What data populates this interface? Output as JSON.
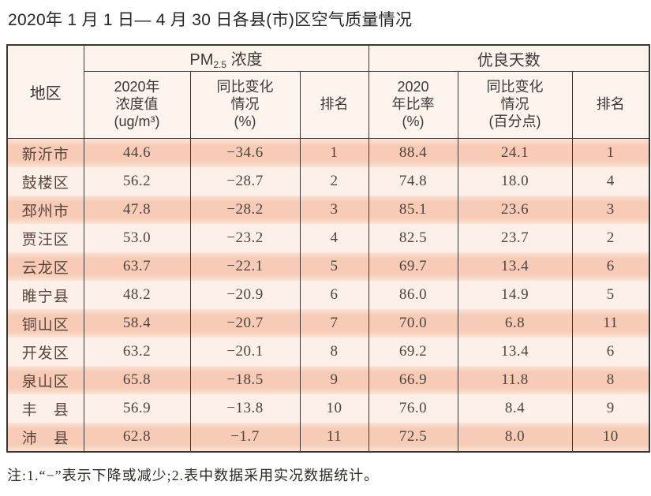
{
  "title": "2020年 1 月 1 日— 4 月 30 日各县(市)区空气质量情况",
  "table": {
    "region_header": "地区",
    "pm_group": {
      "prefix": "PM",
      "sub": "2.5",
      "suffix": " 浓度"
    },
    "good_group": "优良天数",
    "sub_headers": {
      "pm_value": "2020年\n浓度值\n(ug/m³)",
      "pm_change": "同比变化\n情况\n(%)",
      "pm_rank": "排名",
      "good_ratio": "2020\n年比率\n(%)",
      "good_change": "同比变化\n情况\n(百分点)",
      "good_rank": "排名"
    },
    "rows": [
      {
        "region": "新沂市",
        "pm_value": "44.6",
        "pm_change": "−34.6",
        "pm_rank": "1",
        "good_ratio": "88.4",
        "good_change": "24.1",
        "good_rank": "1"
      },
      {
        "region": "鼓楼区",
        "pm_value": "56.2",
        "pm_change": "−28.7",
        "pm_rank": "2",
        "good_ratio": "74.8",
        "good_change": "18.0",
        "good_rank": "4"
      },
      {
        "region": "邳州市",
        "pm_value": "47.8",
        "pm_change": "−28.2",
        "pm_rank": "3",
        "good_ratio": "85.1",
        "good_change": "23.6",
        "good_rank": "3"
      },
      {
        "region": "贾汪区",
        "pm_value": "53.0",
        "pm_change": "−23.2",
        "pm_rank": "4",
        "good_ratio": "82.5",
        "good_change": "23.7",
        "good_rank": "2"
      },
      {
        "region": "云龙区",
        "pm_value": "63.7",
        "pm_change": "−22.1",
        "pm_rank": "5",
        "good_ratio": "69.7",
        "good_change": "13.4",
        "good_rank": "6"
      },
      {
        "region": "睢宁县",
        "pm_value": "48.2",
        "pm_change": "−20.9",
        "pm_rank": "6",
        "good_ratio": "86.0",
        "good_change": "14.9",
        "good_rank": "5"
      },
      {
        "region": "铜山区",
        "pm_value": "58.4",
        "pm_change": "−20.7",
        "pm_rank": "7",
        "good_ratio": "70.0",
        "good_change": "6.8",
        "good_rank": "11"
      },
      {
        "region": "开发区",
        "pm_value": "63.2",
        "pm_change": "−20.1",
        "pm_rank": "8",
        "good_ratio": "69.2",
        "good_change": "13.4",
        "good_rank": "6"
      },
      {
        "region": "泉山区",
        "pm_value": "65.8",
        "pm_change": "−18.5",
        "pm_rank": "9",
        "good_ratio": "66.9",
        "good_change": "11.8",
        "good_rank": "8"
      },
      {
        "region": "丰　县",
        "pm_value": "56.9",
        "pm_change": "−13.8",
        "pm_rank": "10",
        "good_ratio": "76.0",
        "good_change": "8.4",
        "good_rank": "9"
      },
      {
        "region": "沛　县",
        "pm_value": "62.8",
        "pm_change": "−1.7",
        "pm_rank": "11",
        "good_ratio": "72.5",
        "good_change": "8.0",
        "good_rank": "10"
      }
    ]
  },
  "note": "注:1.“−”表示下降或减少;2.表中数据采用实况数据统计。",
  "colors": {
    "header_bg": "#fcf3ec",
    "row_stripe_dark": "#f7cbb5",
    "row_stripe_light": "#fdf0e8",
    "table_border": "#3a3631",
    "title_text": "#262626",
    "data_text": "#4e453e"
  },
  "chart_data": {
    "type": "table",
    "title": "2020年1月1日—4月30日各县(市)区空气质量情况",
    "column_groups": [
      "PM2.5浓度",
      "优良天数"
    ],
    "columns": [
      "地区",
      "2020年浓度值(ug/m³)",
      "同比变化情况(%)",
      "排名",
      "2020年比率(%)",
      "同比变化情况(百分点)",
      "排名"
    ],
    "rows": [
      [
        "新沂市",
        44.6,
        -34.6,
        1,
        88.4,
        24.1,
        1
      ],
      [
        "鼓楼区",
        56.2,
        -28.7,
        2,
        74.8,
        18.0,
        4
      ],
      [
        "邳州市",
        47.8,
        -28.2,
        3,
        85.1,
        23.6,
        3
      ],
      [
        "贾汪区",
        53.0,
        -23.2,
        4,
        82.5,
        23.7,
        2
      ],
      [
        "云龙区",
        63.7,
        -22.1,
        5,
        69.7,
        13.4,
        6
      ],
      [
        "睢宁县",
        48.2,
        -20.9,
        6,
        86.0,
        14.9,
        5
      ],
      [
        "铜山区",
        58.4,
        -20.7,
        7,
        70.0,
        6.8,
        11
      ],
      [
        "开发区",
        63.2,
        -20.1,
        8,
        69.2,
        13.4,
        6
      ],
      [
        "泉山区",
        65.8,
        -18.5,
        9,
        66.9,
        11.8,
        8
      ],
      [
        "丰县",
        56.9,
        -13.8,
        10,
        76.0,
        8.4,
        9
      ],
      [
        "沛县",
        62.8,
        -1.7,
        11,
        72.5,
        8.0,
        10
      ]
    ],
    "footnote": "注:1.“−”表示下降或减少;2.表中数据采用实况数据统计。"
  }
}
